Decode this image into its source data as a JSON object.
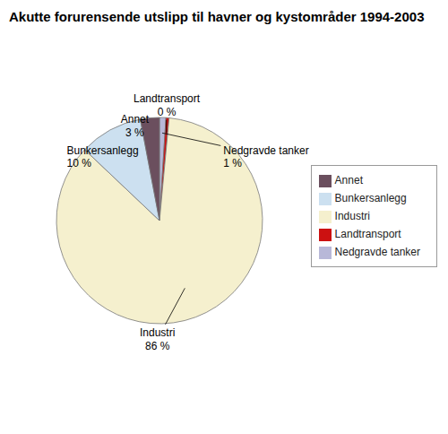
{
  "chart_data": {
    "type": "pie",
    "title": "Akutte forurensende utslipp til havner og kystområder 1994-2003",
    "categories": [
      "Nedgravde tanker",
      "Landtransport",
      "Industri",
      "Bunkersanlegg",
      "Annet"
    ],
    "values": [
      1,
      0.5,
      86,
      10,
      3
    ],
    "value_labels": [
      "1 %",
      "0 %",
      "86 %",
      "10 %",
      "3 %"
    ],
    "colors": [
      "#b8b8d8",
      "#cc1111",
      "#f5f0ce",
      "#cce0f0",
      "#6b4f5e"
    ],
    "data_labels": true,
    "legend": "right"
  }
}
